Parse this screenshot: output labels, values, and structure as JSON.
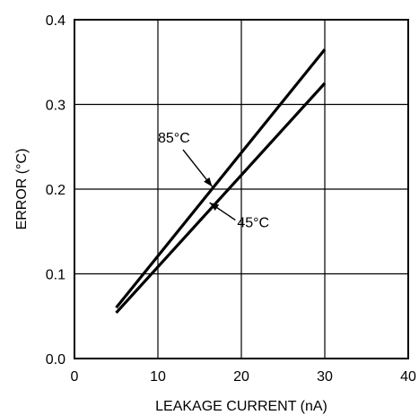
{
  "chart_data": {
    "type": "line",
    "title": "",
    "xlabel": "LEAKAGE CURRENT (nA)",
    "ylabel": "ERROR (°C)",
    "xlim": [
      0,
      40
    ],
    "ylim": [
      0,
      0.4
    ],
    "xticks": [
      0,
      10,
      20,
      30,
      40
    ],
    "yticks": [
      0.0,
      0.1,
      0.2,
      0.3,
      0.4
    ],
    "xtick_labels": [
      "0",
      "10",
      "20",
      "30",
      "40"
    ],
    "ytick_labels": [
      "0.0",
      "0.1",
      "0.2",
      "0.3",
      "0.4"
    ],
    "grid": true,
    "series": [
      {
        "name": "85°C",
        "x": [
          5,
          30
        ],
        "y": [
          0.06,
          0.365
        ]
      },
      {
        "name": "45°C",
        "x": [
          5,
          30
        ],
        "y": [
          0.054,
          0.325
        ]
      }
    ],
    "annotations": [
      {
        "text": "85°C",
        "series": 0,
        "label_at": [
          10.0,
          0.255
        ],
        "arrow_to": [
          16.5,
          0.203
        ]
      },
      {
        "text": "45°C",
        "series": 1,
        "label_at": [
          19.5,
          0.155
        ],
        "arrow_to": [
          16.2,
          0.184
        ]
      }
    ]
  }
}
